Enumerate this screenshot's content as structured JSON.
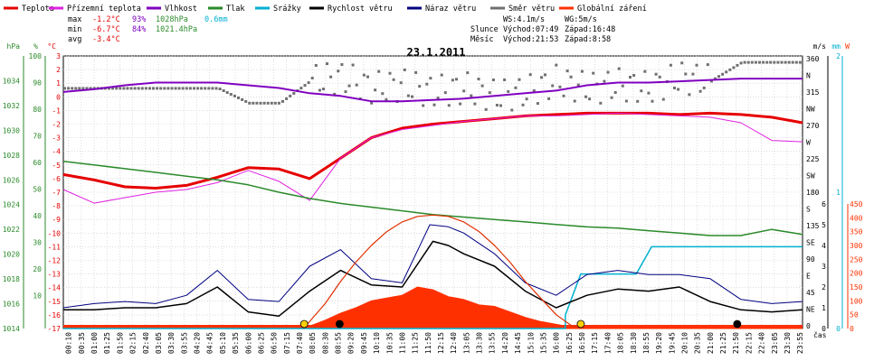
{
  "legend": [
    {
      "label": "Teplota",
      "color": "#e60000"
    },
    {
      "label": "Přízemní teplota",
      "color": "#e020e0"
    },
    {
      "label": "Vlhkost",
      "color": "#8000c0"
    },
    {
      "label": "Tlak",
      "color": "#2a8a2a"
    },
    {
      "label": "Srážky",
      "color": "#00b0d0"
    },
    {
      "label": "Rychlost větru",
      "color": "#000000"
    },
    {
      "label": "Náraz větru",
      "color": "#000080"
    },
    {
      "label": "Směr větru",
      "color": "#707070"
    },
    {
      "label": "Globální záření",
      "color": "#ff3000"
    }
  ],
  "stats": {
    "max_label": "max",
    "max_temp": "-1.2°C",
    "max_hum": "93%",
    "max_press": "1028hPa",
    "max_rain": "0.6mm",
    "min_label": "min",
    "min_temp": "-6.7°C",
    "min_hum": "84%",
    "min_press": "1021.4hPa",
    "avg_label": "avg",
    "avg_temp": "-3.4°C"
  },
  "wind_stats": {
    "ws": "WS:4.1m/s",
    "wg": "WG:5m/s"
  },
  "sun": {
    "label": "Slunce",
    "rise": "Východ:07:49",
    "set": "Západ:16:48"
  },
  "moon": {
    "label": "Měsíc",
    "rise": "Východ:21:53",
    "set": "Západ:8:58"
  },
  "chart_data": {
    "type": "line",
    "title": "23.1.2011",
    "x_unit_label": "čas",
    "axes_units": {
      "hpa": "hPa",
      "pct": "%",
      "temp": "°C",
      "ms": "m/s",
      "mm": "mm",
      "w": "W"
    },
    "x_ticks": [
      "00:10",
      "00:35",
      "01:00",
      "01:25",
      "01:50",
      "02:15",
      "02:40",
      "03:05",
      "03:30",
      "03:55",
      "04:20",
      "04:45",
      "05:10",
      "05:35",
      "06:00",
      "06:25",
      "06:50",
      "07:15",
      "07:40",
      "08:05",
      "08:30",
      "08:55",
      "09:20",
      "09:45",
      "10:10",
      "10:35",
      "11:00",
      "11:25",
      "11:50",
      "12:15",
      "12:40",
      "13:05",
      "13:30",
      "13:55",
      "14:20",
      "14:45",
      "15:10",
      "15:35",
      "16:00",
      "16:25",
      "16:50",
      "17:15",
      "17:40",
      "18:05",
      "18:30",
      "18:55",
      "19:20",
      "19:45",
      "20:10",
      "20:35",
      "21:00",
      "21:25",
      "21:50",
      "22:15",
      "22:40",
      "23:05",
      "23:30",
      "23:55"
    ],
    "y_axes": {
      "pressure_hpa": {
        "range": [
          1014,
          1036
        ],
        "ticks": [
          "1034",
          "1032",
          "1030",
          "1028",
          "1026",
          "1024",
          "1022",
          "1020",
          "1018",
          "1016",
          "1014"
        ]
      },
      "humidity_pct": {
        "range": [
          10,
          100
        ],
        "ticks": [
          "100",
          "90",
          "80",
          "70",
          "60",
          "50",
          "40",
          "30",
          "20",
          "10"
        ]
      },
      "temperature_c": {
        "range": [
          -17,
          3
        ],
        "ticks": [
          "3",
          "2",
          "1",
          "0",
          "-1",
          "-2",
          "-3",
          "-4",
          "-5",
          "-6",
          "-7",
          "-8",
          "-9",
          "-10",
          "-11",
          "-12",
          "-13",
          "-14",
          "-15",
          "-16",
          "-17"
        ]
      },
      "wind_dir": {
        "ticks": [
          "360",
          "N",
          "315",
          "NW",
          "270",
          "W",
          "225",
          "SW",
          "180",
          "S",
          "135",
          "SE",
          "90",
          "E",
          "45",
          "NE",
          "0"
        ]
      },
      "wind_ms": {
        "ticks": [
          "6",
          "5",
          "4",
          "3",
          "2",
          "1",
          "0"
        ]
      },
      "rain_mm": {
        "ticks": [
          "2",
          "1",
          "0"
        ]
      },
      "radiation_w": {
        "ticks": [
          "450",
          "400",
          "350",
          "300",
          "250",
          "200",
          "150",
          "100",
          "50",
          "0"
        ]
      }
    },
    "series": [
      {
        "name": "Teplota",
        "unit": "°C",
        "x": [
          0,
          1,
          2,
          3,
          4,
          5,
          6,
          7,
          8,
          9,
          10,
          11,
          12,
          13,
          14,
          15,
          16,
          17,
          18,
          19,
          20,
          21,
          22,
          23,
          24
        ],
        "values": [
          -5.7,
          -6.1,
          -6.6,
          -6.7,
          -6.5,
          -5.9,
          -5.2,
          -5.3,
          -6.0,
          -4.5,
          -3.0,
          -2.3,
          -2.0,
          -1.8,
          -1.6,
          -1.4,
          -1.3,
          -1.2,
          -1.2,
          -1.2,
          -1.3,
          -1.2,
          -1.3,
          -1.5,
          -1.9
        ]
      },
      {
        "name": "Přízemní teplota",
        "unit": "°C",
        "x": [
          0,
          1,
          2,
          3,
          4,
          5,
          6,
          7,
          8,
          9,
          10,
          11,
          12,
          13,
          14,
          15,
          16,
          17,
          18,
          19,
          20,
          21,
          22,
          23,
          24
        ],
        "values": [
          -6.8,
          -7.8,
          -7.4,
          -7.0,
          -6.8,
          -6.3,
          -5.4,
          -6.2,
          -7.6,
          -4.5,
          -3.0,
          -2.4,
          -2.1,
          -1.8,
          -1.6,
          -1.4,
          -1.4,
          -1.3,
          -1.2,
          -1.3,
          -1.4,
          -1.5,
          -1.9,
          -3.2,
          -3.3
        ]
      },
      {
        "name": "Vlhkost",
        "unit": "%",
        "x": [
          0,
          1,
          2,
          3,
          4,
          5,
          6,
          7,
          8,
          9,
          10,
          11,
          12,
          13,
          14,
          15,
          16,
          17,
          18,
          19,
          20,
          21,
          22,
          23,
          24
        ],
        "values": [
          87.5,
          88.5,
          90,
          91,
          91,
          91,
          90,
          89,
          87,
          86,
          84,
          84,
          84.5,
          85,
          86,
          87,
          88,
          90,
          91,
          91,
          91.5,
          92,
          92.5,
          92.5,
          92.5
        ]
      },
      {
        "name": "Tlak",
        "unit": "hPa",
        "x": [
          0,
          1,
          2,
          3,
          4,
          5,
          6,
          7,
          8,
          9,
          10,
          11,
          12,
          13,
          14,
          15,
          16,
          17,
          18,
          19,
          20,
          21,
          22,
          23,
          24
        ],
        "values": [
          1027.5,
          1027.2,
          1026.9,
          1026.6,
          1026.3,
          1026.0,
          1025.6,
          1025.0,
          1024.5,
          1024.1,
          1023.8,
          1023.5,
          1023.2,
          1023.0,
          1022.8,
          1022.6,
          1022.4,
          1022.2,
          1022.1,
          1021.9,
          1021.7,
          1021.5,
          1021.5,
          1022.0,
          1021.6
        ]
      },
      {
        "name": "Srážky",
        "unit": "mm",
        "x": [
          0,
          16.3,
          16.3,
          16.8,
          18.6,
          19.1,
          24
        ],
        "values": [
          0,
          0,
          0.1,
          0.4,
          0.4,
          0.6,
          0.6
        ]
      },
      {
        "name": "Rychlost větru",
        "unit": "m/s",
        "x": [
          0,
          1,
          2,
          3,
          4,
          5,
          6,
          7,
          8,
          9,
          10,
          11,
          12,
          12.5,
          13,
          14,
          15,
          16,
          17,
          18,
          19,
          20,
          21,
          22,
          23,
          24
        ],
        "values": [
          0.9,
          0.9,
          1.0,
          1.0,
          1.2,
          2.0,
          0.8,
          0.6,
          1.8,
          2.8,
          2.1,
          2.0,
          4.2,
          4.0,
          3.6,
          3.0,
          1.8,
          1.0,
          1.6,
          1.9,
          1.8,
          2.0,
          1.3,
          0.9,
          0.8,
          0.9
        ]
      },
      {
        "name": "Náraz větru",
        "unit": "m/s",
        "x": [
          0,
          1,
          2,
          3,
          4,
          5,
          6,
          7,
          8,
          9,
          10,
          11,
          11.9,
          12.5,
          13,
          14,
          15,
          16,
          17,
          18,
          19,
          20,
          21,
          22,
          23,
          24
        ],
        "values": [
          1.0,
          1.2,
          1.3,
          1.2,
          1.6,
          2.8,
          1.4,
          1.3,
          3.0,
          3.8,
          2.4,
          2.2,
          5.0,
          4.9,
          4.6,
          3.6,
          2.2,
          1.6,
          2.6,
          2.8,
          2.6,
          2.6,
          2.4,
          1.4,
          1.2,
          1.3
        ]
      },
      {
        "name": "Směr větru",
        "unit": "°",
        "x": [
          0,
          5,
          6,
          7,
          8,
          9,
          10,
          11,
          12,
          13,
          14,
          15,
          16,
          17,
          18,
          19,
          20,
          21,
          22,
          23,
          24
        ],
        "values": [
          320,
          320,
          300,
          300,
          330,
          335,
          320,
          325,
          315,
          320,
          310,
          315,
          330,
          320,
          325,
          320,
          335,
          330,
          355,
          355,
          355
        ]
      },
      {
        "name": "Globální záření",
        "unit": "W/m²",
        "x": [
          0,
          7.8,
          8.5,
          9,
          9.5,
          10,
          10.5,
          11,
          11.5,
          12,
          12.5,
          13,
          13.5,
          14,
          14.5,
          15,
          15.5,
          16,
          16.5,
          16.8,
          24
        ],
        "values": [
          0,
          0,
          30,
          55,
          75,
          100,
          110,
          120,
          150,
          140,
          115,
          105,
          85,
          80,
          60,
          40,
          25,
          15,
          5,
          0,
          0
        ]
      },
      {
        "name": "Max. záření",
        "unit": "W/m²",
        "x": [
          7.8,
          8.5,
          9,
          9.5,
          10,
          10.5,
          11,
          11.5,
          12,
          12.5,
          13,
          13.5,
          14,
          14.5,
          15,
          15.5,
          16,
          16.5,
          16.8
        ],
        "values": [
          0,
          90,
          170,
          240,
          300,
          350,
          385,
          405,
          410,
          405,
          385,
          350,
          300,
          240,
          170,
          110,
          50,
          10,
          0
        ]
      }
    ]
  }
}
